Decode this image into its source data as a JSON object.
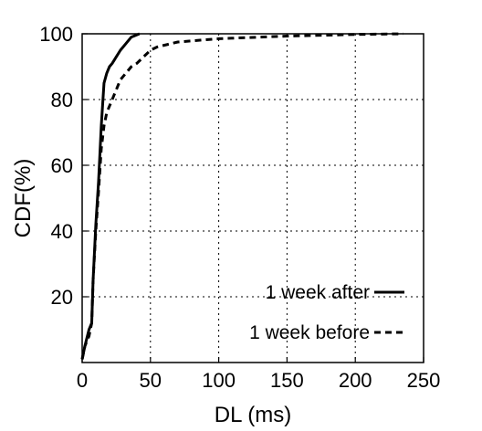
{
  "chart_data": {
    "type": "line",
    "xlabel": "DL (ms)",
    "ylabel": "CDF(%)",
    "xlim": [
      0,
      250
    ],
    "ylim": [
      0,
      100
    ],
    "x_ticks": [
      "0",
      "50",
      "100",
      "150",
      "200",
      "250"
    ],
    "y_ticks": [
      "20",
      "40",
      "60",
      "80",
      "100"
    ],
    "grid": true,
    "legend_position": "bottom-right",
    "series": [
      {
        "name": "1 week after",
        "style": "solid",
        "color": "#000000",
        "x": [
          0,
          2,
          5,
          7,
          8,
          10,
          12,
          14,
          16,
          18,
          20,
          22,
          25,
          28,
          32,
          36,
          42
        ],
        "y": [
          1,
          5,
          10,
          12,
          25,
          42,
          55,
          72,
          85,
          88,
          90,
          91,
          93,
          95,
          97,
          99,
          100
        ]
      },
      {
        "name": "1 week before",
        "style": "dashed",
        "color": "#000000",
        "x": [
          0,
          2,
          5,
          7,
          8,
          10,
          12,
          14,
          16,
          18,
          20,
          22,
          25,
          28,
          32,
          36,
          40,
          45,
          50,
          55,
          70,
          100,
          150,
          200,
          235
        ],
        "y": [
          1,
          5,
          8,
          12,
          25,
          40,
          52,
          65,
          72,
          76,
          78,
          80,
          83,
          86,
          88,
          90,
          91,
          93,
          95,
          96,
          97.5,
          98.5,
          99.3,
          99.8,
          100
        ]
      }
    ]
  }
}
